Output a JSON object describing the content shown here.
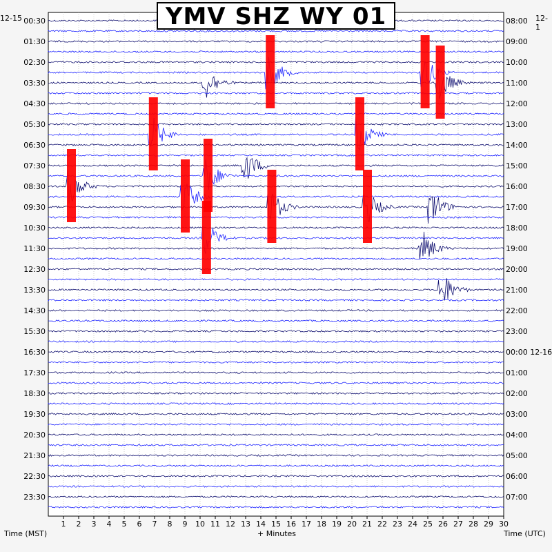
{
  "title": "YMV SHZ WY 01",
  "date_left": "12-15",
  "date_right": "12-1",
  "left_axis_caption": "Time (MST)",
  "bottom_axis_caption": "+ Minutes",
  "right_axis_caption": "Time (UTC)",
  "colors": {
    "trace_dark": "#0c0c6e",
    "trace_blue": "#1c22ff",
    "clipped": "#ff0000",
    "background": "#ffffff",
    "grid": "#b0b0b0"
  },
  "chart_data": {
    "type": "line",
    "description_type": "helicorder",
    "x_ticks": [
      "1",
      "2",
      "3",
      "4",
      "5",
      "6",
      "7",
      "8",
      "9",
      "10",
      "11",
      "12",
      "13",
      "14",
      "15",
      "16",
      "17",
      "18",
      "19",
      "20",
      "21",
      "22",
      "23",
      "24",
      "25",
      "26",
      "27",
      "28",
      "29",
      "30"
    ],
    "x_range_minutes": [
      0,
      30
    ],
    "left_labels": [
      "00:30",
      "01:30",
      "02:30",
      "03:30",
      "04:30",
      "05:30",
      "06:30",
      "07:30",
      "08:30",
      "09:30",
      "10:30",
      "11:30",
      "12:30",
      "13:30",
      "14:30",
      "15:30",
      "16:30",
      "17:30",
      "18:30",
      "19:30",
      "20:30",
      "21:30",
      "22:30",
      "23:30"
    ],
    "right_labels": [
      "08:00",
      "09:00",
      "10:00",
      "11:00",
      "12:00",
      "13:00",
      "14:00",
      "15:00",
      "16:00",
      "17:00",
      "18:00",
      "19:00",
      "20:00",
      "21:00",
      "22:00",
      "23:00",
      "00:00 12-16",
      "01:00",
      "02:00",
      "03:00",
      "04:00",
      "05:00",
      "06:00",
      "07:00"
    ],
    "events": [
      {
        "line": 5,
        "minute": 14.6,
        "clipped": true
      },
      {
        "line": 6,
        "minute": 10.4,
        "clipped": false
      },
      {
        "line": 5,
        "minute": 24.8,
        "clipped": true
      },
      {
        "line": 6,
        "minute": 25.8,
        "clipped": true
      },
      {
        "line": 11,
        "minute": 6.9,
        "clipped": true
      },
      {
        "line": 11,
        "minute": 20.5,
        "clipped": true
      },
      {
        "line": 14,
        "minute": 13.0,
        "clipped": false
      },
      {
        "line": 15,
        "minute": 10.5,
        "clipped": true
      },
      {
        "line": 16,
        "minute": 1.5,
        "clipped": true
      },
      {
        "line": 17,
        "minute": 9.0,
        "clipped": true
      },
      {
        "line": 18,
        "minute": 14.7,
        "clipped": true
      },
      {
        "line": 18,
        "minute": 21.0,
        "clipped": true
      },
      {
        "line": 18,
        "minute": 25.3,
        "clipped": false
      },
      {
        "line": 21,
        "minute": 10.4,
        "clipped": true
      },
      {
        "line": 22,
        "minute": 24.7,
        "clipped": false
      },
      {
        "line": 26,
        "minute": 26.0,
        "clipped": false
      }
    ]
  }
}
